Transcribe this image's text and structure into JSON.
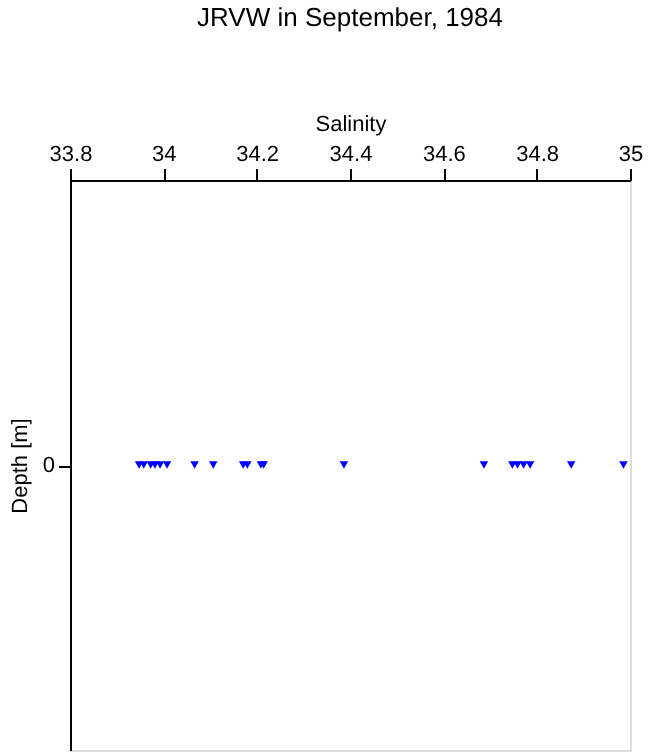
{
  "chart_data": {
    "type": "scatter",
    "orientation": "horizontal",
    "title": "JRVW in September, 1984",
    "xlabel": "Salinity",
    "ylabel": "Depth [m]",
    "categories": [
      "0"
    ],
    "series": [
      {
        "color": "#0000ff",
        "x": [
          "0",
          "0",
          "0",
          "0",
          "0",
          "0",
          "0",
          "0",
          "0",
          "0",
          "0",
          "0",
          "0",
          "0",
          "0",
          "0",
          "0",
          "0",
          "0",
          "0"
        ],
        "values": [
          33.948,
          33.958,
          33.973,
          33.982,
          33.993,
          34.008,
          34.067,
          34.107,
          34.171,
          34.18,
          34.209,
          34.215,
          34.387,
          34.687,
          34.748,
          34.759,
          34.772,
          34.786,
          34.874,
          34.986
        ]
      }
    ],
    "xlim": [
      33.8,
      35
    ],
    "xticks": [
      33.8,
      34,
      34.2,
      34.4,
      34.6,
      34.8,
      35
    ],
    "grid": false,
    "marker": "triangle"
  }
}
